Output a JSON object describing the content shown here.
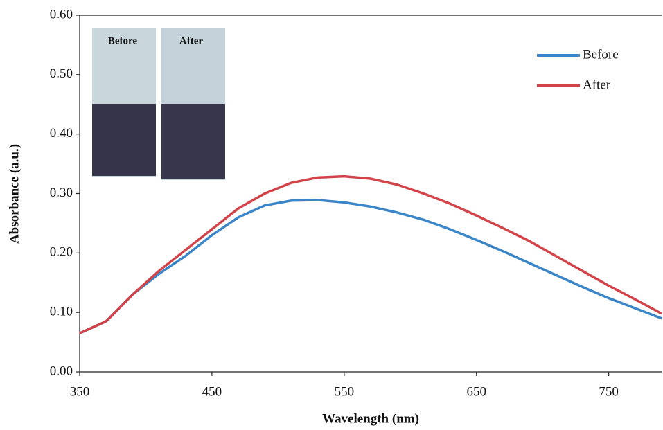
{
  "chart_data": {
    "type": "line",
    "x_label": "Wavelength (nm)",
    "y_label": "Absorbance (a.u.)",
    "x": [
      350,
      370,
      390,
      410,
      430,
      450,
      470,
      490,
      510,
      530,
      550,
      570,
      590,
      610,
      630,
      650,
      670,
      690,
      710,
      730,
      750,
      770,
      790
    ],
    "series": [
      {
        "name": "Before",
        "color": "#3a86c8",
        "values": [
          0.065,
          0.085,
          0.13,
          0.165,
          0.195,
          0.23,
          0.26,
          0.28,
          0.288,
          0.289,
          0.285,
          0.278,
          0.268,
          0.256,
          0.24,
          0.222,
          0.203,
          0.183,
          0.163,
          0.143,
          0.124,
          0.107,
          0.09
        ]
      },
      {
        "name": "After",
        "color": "#d2444a",
        "values": [
          0.065,
          0.085,
          0.13,
          0.17,
          0.205,
          0.24,
          0.275,
          0.3,
          0.318,
          0.327,
          0.329,
          0.325,
          0.315,
          0.3,
          0.283,
          0.263,
          0.242,
          0.22,
          0.195,
          0.17,
          0.145,
          0.122,
          0.098
        ]
      }
    ],
    "xlim": [
      350,
      790
    ],
    "ylim": [
      0,
      0.6
    ],
    "xticks": [
      350,
      450,
      550,
      650,
      750
    ],
    "yticks": [
      {
        "value": 0,
        "label": "0.00"
      },
      {
        "value": 0.1,
        "label": "0.10"
      },
      {
        "value": 0.2,
        "label": "0.20"
      },
      {
        "value": 0.3,
        "label": "0.30"
      },
      {
        "value": 0.4,
        "label": "0.40"
      },
      {
        "value": 0.5,
        "label": "0.50"
      },
      {
        "value": 0.6,
        "label": "0.60"
      }
    ],
    "grid": false,
    "legend": "upper right",
    "inset_labels": [
      "Before",
      "After"
    ]
  }
}
